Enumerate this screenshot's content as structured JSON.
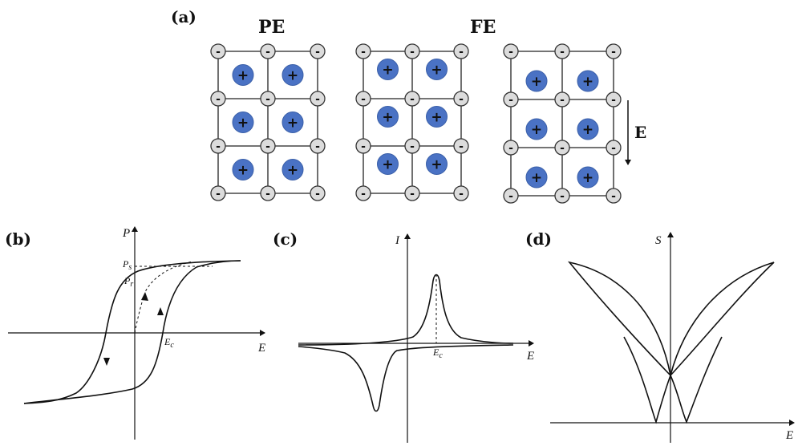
{
  "panel_a": {
    "label": "(a)",
    "pe_title": "PE",
    "fe_title": "FE",
    "field_label": "E",
    "anion_sign": "-",
    "cation_sign": "+",
    "colors": {
      "cation": "#4a72c4",
      "anion": "#dcdcdc",
      "line": "#222222"
    }
  },
  "panel_b": {
    "label": "(b)",
    "y_axis_label": "P",
    "x_axis_label": "E",
    "ps_label": "P",
    "ps_sub": "s",
    "pr_label": "P",
    "pr_sub": "r",
    "ec_label": "E",
    "ec_sub": "c"
  },
  "panel_c": {
    "label": "(c)",
    "y_axis_label": "I",
    "x_axis_label": "E",
    "ec_label": "E",
    "ec_sub": "c"
  },
  "panel_d": {
    "label": "(d)",
    "y_axis_label": "S",
    "x_axis_label": "E"
  }
}
